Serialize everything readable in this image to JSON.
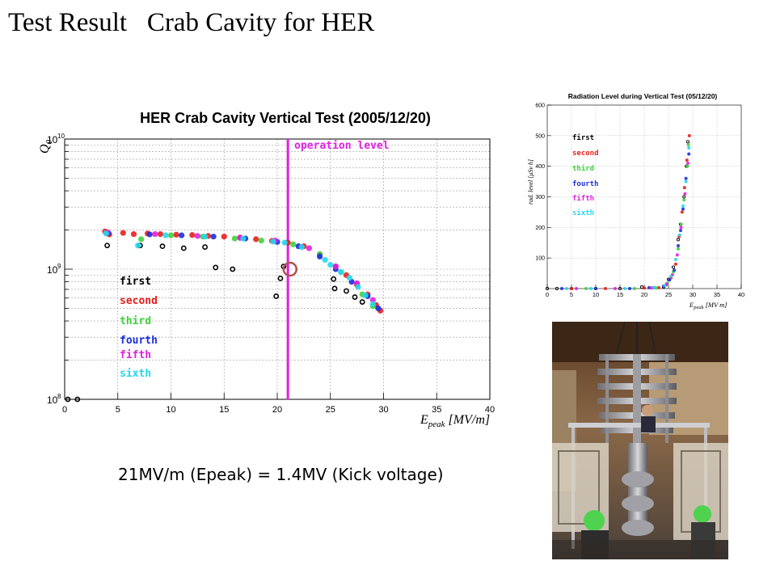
{
  "slide": {
    "title": "Test Result   Crab Cavity for HER",
    "caption": "21MV/m (Epeak) = 1.4MV (Kick voltage)"
  },
  "colors": {
    "first": "#000000",
    "second": "#e8201c",
    "third": "#3fd13c",
    "fourth": "#1b2ee0",
    "fifth": "#e021e0",
    "sixth": "#22d8ee",
    "operation_line": "#e021e0",
    "highlight_circle": "#b25050"
  },
  "chart_data": [
    {
      "type": "scatter",
      "title": "HER Crab Cavity Vertical Test (2005/12/20)",
      "xlabel": "E_peak [MV/m]",
      "ylabel": "Q_0",
      "xlim": [
        0,
        40
      ],
      "ylim": [
        100000000,
        10000000000
      ],
      "yscale": "log",
      "grid": true,
      "legend_position": "lower-left",
      "x_ticks": [
        "0",
        "5",
        "10",
        "15",
        "20",
        "25",
        "30",
        "35",
        "40"
      ],
      "y_ticks": [
        {
          "value": 100000000,
          "base": "10",
          "exp": "8"
        },
        {
          "value": 1000000000,
          "base": "10",
          "exp": "9"
        },
        {
          "value": 10000000000,
          "base": "10",
          "exp": "10"
        }
      ],
      "annotation": {
        "text": "operation level",
        "x": 21
      },
      "highlight_point": {
        "x": 21.2,
        "y": 1000000000
      },
      "series": [
        {
          "name": "first",
          "color": "#000000",
          "hollow": true,
          "points": [
            [
              0.3,
              100000000.0
            ],
            [
              1.2,
              100000000.0
            ],
            [
              4.0,
              1520000000.0
            ],
            [
              7.1,
              1520000000.0
            ],
            [
              9.2,
              1500000000.0
            ],
            [
              11.2,
              1450000000.0
            ],
            [
              13.2,
              1480000000.0
            ],
            [
              14.2,
              1030000000.0
            ],
            [
              15.8,
              1000000000.0
            ],
            [
              19.9,
              620000000.0
            ],
            [
              20.3,
              850000000.0
            ],
            [
              20.6,
              1050000000.0
            ],
            [
              25.3,
              840000000.0
            ],
            [
              25.4,
              710000000.0
            ],
            [
              26.5,
              680000000.0
            ],
            [
              27.3,
              610000000.0
            ],
            [
              28.0,
              560000000.0
            ]
          ]
        },
        {
          "name": "second",
          "color": "#e8201c",
          "points": [
            [
              3.8,
              1950000000.0
            ],
            [
              4.2,
              1850000000.0
            ],
            [
              5.5,
              1900000000.0
            ],
            [
              6.5,
              1860000000.0
            ],
            [
              7.8,
              1880000000.0
            ],
            [
              9.0,
              1860000000.0
            ],
            [
              10.5,
              1840000000.0
            ],
            [
              12.0,
              1830000000.0
            ],
            [
              13.5,
              1800000000.0
            ],
            [
              15.0,
              1780000000.0
            ],
            [
              16.5,
              1750000000.0
            ],
            [
              18.0,
              1700000000.0
            ],
            [
              19.5,
              1650000000.0
            ],
            [
              21.0,
              1600000000.0
            ],
            [
              22.5,
              1500000000.0
            ],
            [
              24.0,
              1300000000.0
            ],
            [
              25.5,
              1050000000.0
            ],
            [
              26.5,
              900000000.0
            ],
            [
              27.5,
              760000000.0
            ],
            [
              28.5,
              640000000.0
            ],
            [
              29.3,
              530000000.0
            ],
            [
              29.7,
              480000000.0
            ]
          ]
        },
        {
          "name": "third",
          "color": "#3fd13c",
          "points": [
            [
              3.9,
              1900000000.0
            ],
            [
              7.2,
              1700000000.0
            ],
            [
              10.0,
              1820000000.0
            ],
            [
              13.0,
              1780000000.0
            ],
            [
              16.0,
              1720000000.0
            ],
            [
              18.5,
              1660000000.0
            ],
            [
              21.5,
              1550000000.0
            ],
            [
              24.0,
              1300000000.0
            ],
            [
              26.0,
              950000000.0
            ],
            [
              28.0,
              640000000.0
            ],
            [
              29.0,
              520000000.0
            ]
          ]
        },
        {
          "name": "fourth",
          "color": "#1b2ee0",
          "points": [
            [
              4.1,
              1900000000.0
            ],
            [
              8.0,
              1850000000.0
            ],
            [
              11.0,
              1820000000.0
            ],
            [
              14.0,
              1780000000.0
            ],
            [
              17.0,
              1720000000.0
            ],
            [
              20.0,
              1620000000.0
            ],
            [
              22.0,
              1500000000.0
            ],
            [
              24.0,
              1250000000.0
            ],
            [
              25.5,
              1000000000.0
            ],
            [
              27.0,
              800000000.0
            ],
            [
              28.5,
              620000000.0
            ],
            [
              29.5,
              500000000.0
            ]
          ]
        },
        {
          "name": "fifth",
          "color": "#e021e0",
          "points": [
            [
              4.0,
              1920000000.0
            ],
            [
              8.5,
              1860000000.0
            ],
            [
              12.5,
              1800000000.0
            ],
            [
              16.5,
              1740000000.0
            ],
            [
              19.8,
              1660000000.0
            ],
            [
              23.0,
              1450000000.0
            ],
            [
              25.5,
              1050000000.0
            ],
            [
              27.5,
              780000000.0
            ],
            [
              29.0,
              580000000.0
            ]
          ]
        },
        {
          "name": "sixth",
          "color": "#22d8ee",
          "points": [
            [
              3.9,
              1880000000.0
            ],
            [
              6.9,
              1520000000.0
            ],
            [
              9.5,
              1820000000.0
            ],
            [
              13.2,
              1780000000.0
            ],
            [
              16.8,
              1720000000.0
            ],
            [
              19.6,
              1630000000.0
            ],
            [
              20.7,
              1600000000.0
            ],
            [
              22.3,
              1480000000.0
            ],
            [
              24.5,
              1180000000.0
            ],
            [
              25.0,
              1080000000.0
            ],
            [
              26.0,
              950000000.0
            ],
            [
              26.8,
              860000000.0
            ],
            [
              27.6,
              730000000.0
            ],
            [
              28.3,
              630000000.0
            ],
            [
              29.0,
              540000000.0
            ]
          ]
        }
      ]
    },
    {
      "type": "scatter",
      "title": "Radiation Level during Vertical Test (05/12/20)",
      "xlabel": "E_peak [MV m]",
      "ylabel": "rad. level [μSv h]",
      "xlim": [
        0,
        40
      ],
      "ylim": [
        0,
        600
      ],
      "grid": true,
      "legend_position": "top-left",
      "x_ticks": [
        "0",
        "5",
        "10",
        "15",
        "20",
        "25",
        "30",
        "35",
        "40"
      ],
      "y_ticks": [
        "100",
        "200",
        "300",
        "400",
        "500",
        "600"
      ],
      "series": [
        {
          "name": "first",
          "color": "#000000",
          "hollow": true,
          "points": [
            [
              0,
              0
            ],
            [
              2,
              0
            ],
            [
              5,
              0
            ],
            [
              10,
              0
            ],
            [
              15,
              0
            ],
            [
              19.5,
              5
            ],
            [
              22,
              3
            ],
            [
              24,
              5
            ],
            [
              25,
              30
            ],
            [
              26,
              70
            ],
            [
              27,
              160
            ],
            [
              27.5,
              210
            ],
            [
              28.2,
              300
            ],
            [
              28.7,
              400
            ],
            [
              29,
              480
            ]
          ]
        },
        {
          "name": "second",
          "color": "#e8201c",
          "points": [
            [
              5,
              0
            ],
            [
              12,
              0
            ],
            [
              20,
              2
            ],
            [
              23,
              3
            ],
            [
              24.5,
              12
            ],
            [
              25.5,
              35
            ],
            [
              26.5,
              80
            ],
            [
              27.2,
              170
            ],
            [
              27.8,
              250
            ],
            [
              28.3,
              330
            ],
            [
              28.8,
              420
            ],
            [
              29.3,
              500
            ]
          ]
        },
        {
          "name": "third",
          "color": "#3fd13c",
          "points": [
            [
              8,
              0
            ],
            [
              18,
              0
            ],
            [
              22.5,
              2
            ],
            [
              24.8,
              18
            ],
            [
              26,
              55
            ],
            [
              27,
              130
            ],
            [
              27.6,
              210
            ],
            [
              28.2,
              290
            ],
            [
              28.9,
              400
            ],
            [
              29.1,
              470
            ]
          ]
        },
        {
          "name": "fourth",
          "color": "#1b2ee0",
          "points": [
            [
              3,
              0
            ],
            [
              10,
              0
            ],
            [
              17,
              0
            ],
            [
              21,
              3
            ],
            [
              24,
              8
            ],
            [
              25.2,
              28
            ],
            [
              26.2,
              60
            ],
            [
              27,
              140
            ],
            [
              27.5,
              190
            ],
            [
              28,
              260
            ],
            [
              28.6,
              360
            ],
            [
              29.2,
              440
            ]
          ]
        },
        {
          "name": "fifth",
          "color": "#e021e0",
          "points": [
            [
              6,
              0
            ],
            [
              14,
              0
            ],
            [
              21.5,
              2
            ],
            [
              24.6,
              15
            ],
            [
              25.8,
              45
            ],
            [
              26.8,
              110
            ],
            [
              27.6,
              200
            ],
            [
              28.4,
              310
            ],
            [
              29,
              410
            ]
          ]
        },
        {
          "name": "sixth",
          "color": "#22d8ee",
          "points": [
            [
              4,
              0
            ],
            [
              9,
              0
            ],
            [
              16,
              0
            ],
            [
              22,
              3
            ],
            [
              24.2,
              10
            ],
            [
              25.5,
              40
            ],
            [
              26.5,
              95
            ],
            [
              27.3,
              175
            ],
            [
              28,
              270
            ],
            [
              28.6,
              350
            ],
            [
              29.2,
              460
            ]
          ]
        }
      ]
    }
  ]
}
